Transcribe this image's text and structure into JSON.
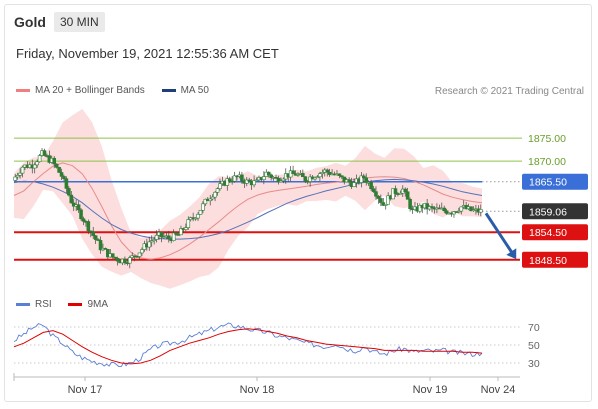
{
  "header": {
    "symbol": "Gold",
    "timeframe": "30 MIN"
  },
  "datetime": "Friday, November 19, 2021 12:55:36 AM CET",
  "legend": {
    "ma20": {
      "label": "MA 20 + Bollinger Bands",
      "color": "#f08080"
    },
    "ma50": {
      "label": "MA 50",
      "color": "#1f3f7a"
    }
  },
  "credit": "Research © 2021 Trading Central",
  "rsi_legend": {
    "rsi": {
      "label": "RSI",
      "color": "#5a7fd6"
    },
    "ma9": {
      "label": "9MA",
      "color": "#e00000"
    }
  },
  "chart_data": {
    "type": "line",
    "title": "",
    "x_labels": [
      "Nov 17",
      "Nov 18",
      "Nov 19",
      "Nov 24"
    ],
    "price_ylim": [
      1843,
      1882
    ],
    "levels": [
      {
        "value": 1875.0,
        "label": "1875.00",
        "kind": "resistance-green",
        "color": "#8bc34a"
      },
      {
        "value": 1870.0,
        "label": "1870.00",
        "kind": "resistance-green",
        "color": "#8bc34a"
      },
      {
        "value": 1865.5,
        "label": "1865.50",
        "kind": "pivot",
        "color": "#3a6fd8"
      },
      {
        "value": 1859.06,
        "label": "1859.06",
        "kind": "last-price",
        "color": "#333333"
      },
      {
        "value": 1854.5,
        "label": "1854.50",
        "kind": "target",
        "color": "#dd1111"
      },
      {
        "value": 1848.5,
        "label": "1848.50",
        "kind": "target",
        "color": "#dd1111"
      }
    ],
    "series": [
      {
        "name": "MA 20",
        "values": [
          1862.5,
          1863.5,
          1865.5,
          1867.3,
          1868.9,
          1869.6,
          1869.0,
          1867.2,
          1864.1,
          1860.1,
          1855.9,
          1852.4,
          1850.1,
          1848.9,
          1848.6,
          1848.9,
          1849.6,
          1850.6,
          1851.9,
          1853.4,
          1855.1,
          1856.8,
          1858.6,
          1860.3,
          1861.7,
          1862.6,
          1863.2,
          1863.6,
          1863.9,
          1864.2,
          1864.5,
          1864.9,
          1865.2,
          1865.4,
          1865.7,
          1866.0,
          1866.3,
          1866.5,
          1866.6,
          1866.5,
          1866.2,
          1865.6,
          1864.8,
          1863.8,
          1862.8,
          1862.1,
          1861.6,
          1861.2,
          1860.9
        ]
      },
      {
        "name": "MA 50",
        "values": [
          1865.3,
          1865.6,
          1865.5,
          1865.0,
          1864.3,
          1863.4,
          1862.3,
          1860.9,
          1859.2,
          1857.6,
          1856.2,
          1855.1,
          1854.3,
          1853.7,
          1853.3,
          1853.1,
          1853.0,
          1853.0,
          1853.1,
          1853.3,
          1853.7,
          1854.2,
          1854.9,
          1855.8,
          1856.7,
          1857.7,
          1858.8,
          1859.8,
          1860.8,
          1861.6,
          1862.3,
          1862.9,
          1863.5,
          1864.0,
          1864.5,
          1865.0,
          1865.4,
          1865.7,
          1865.9,
          1866.0,
          1865.9,
          1865.7,
          1865.4,
          1865.0,
          1864.5,
          1863.9,
          1863.3,
          1862.9,
          1862.5
        ]
      },
      {
        "name": "Price",
        "values": [
          1865.8,
          1868.8,
          1869.2,
          1871.5,
          1870.0,
          1866.8,
          1861.3,
          1858.2,
          1854.7,
          1851.2,
          1849.3,
          1848.4,
          1848.6,
          1850.3,
          1852.4,
          1853.7,
          1853.2,
          1853.9,
          1856.6,
          1858.8,
          1861.8,
          1864.0,
          1865.8,
          1866.5,
          1865.5,
          1865.3,
          1867.4,
          1866.0,
          1867.0,
          1867.2,
          1866.0,
          1867.0,
          1867.8,
          1867.1,
          1865.8,
          1865.0,
          1866.5,
          1864.0,
          1860.5,
          1863.2,
          1863.8,
          1859.0,
          1860.2,
          1859.5,
          1859.3,
          1859.0,
          1860.0,
          1859.2,
          1859.06
        ]
      }
    ],
    "projection": {
      "from": 1859.06,
      "to": 1848.5
    },
    "rsi": {
      "ylim": [
        20,
        80
      ],
      "ticks": [
        "70",
        "50",
        "30"
      ],
      "series": [
        {
          "name": "RSI",
          "values": [
            55,
            62,
            70,
            72,
            60,
            52,
            42,
            36,
            32,
            30,
            28,
            28,
            30,
            36,
            45,
            50,
            52,
            54,
            58,
            62,
            66,
            70,
            72,
            71,
            68,
            66,
            64,
            60,
            58,
            55,
            52,
            50,
            48,
            52,
            46,
            44,
            48,
            42,
            40,
            44,
            46,
            42,
            44,
            43,
            44,
            42,
            41,
            40,
            41
          ]
        },
        {
          "name": "9MA",
          "values": [
            48,
            52,
            58,
            64,
            66,
            62,
            55,
            48,
            42,
            37,
            33,
            30,
            29,
            30,
            33,
            38,
            44,
            48,
            52,
            55,
            58,
            62,
            65,
            67,
            68,
            67,
            65,
            63,
            60,
            58,
            55,
            53,
            51,
            50,
            49,
            48,
            47,
            46,
            44,
            44,
            44,
            44,
            43,
            43,
            43,
            43,
            42,
            42,
            41
          ]
        }
      ]
    }
  }
}
